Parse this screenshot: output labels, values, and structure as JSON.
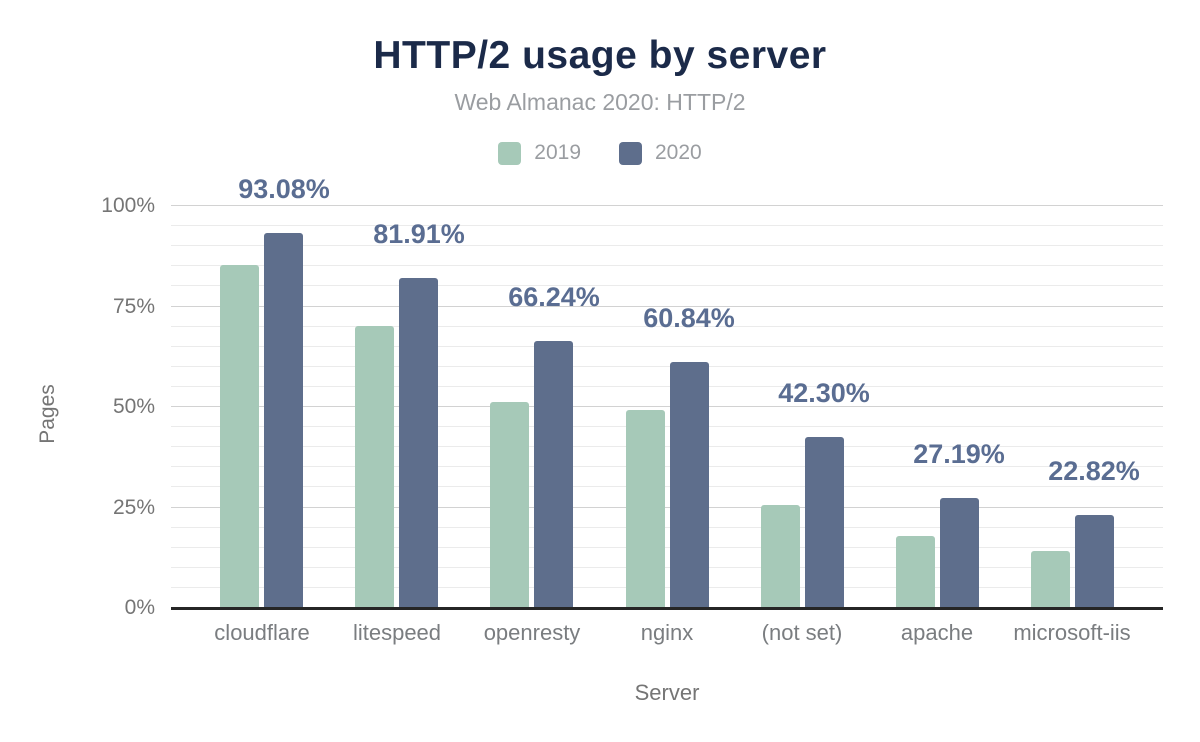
{
  "chart_data": {
    "type": "bar",
    "title": "HTTP/2 usage by server",
    "subtitle": "Web Almanac 2020: HTTP/2",
    "xlabel": "Server",
    "ylabel": "Pages",
    "ylim": [
      0,
      100
    ],
    "y_tick_labels": [
      "0%",
      "25%",
      "50%",
      "75%",
      "100%"
    ],
    "y_tick_values": [
      0,
      25,
      50,
      75,
      100
    ],
    "minor_grid_step": 5,
    "grid": "on",
    "legend_position": "top",
    "categories": [
      "cloudflare",
      "litespeed",
      "openresty",
      "nginx",
      "(not set)",
      "apache",
      "microsoft-iis"
    ],
    "series": [
      {
        "name": "2019",
        "color": "#a6c9b8",
        "values": [
          85.1,
          70.0,
          51.0,
          49.0,
          25.4,
          17.7,
          13.9
        ]
      },
      {
        "name": "2020",
        "color": "#5e6e8c",
        "values": [
          93.08,
          81.91,
          66.24,
          60.84,
          42.3,
          27.19,
          22.82
        ],
        "value_labels": [
          "93.08%",
          "81.91%",
          "66.24%",
          "60.84%",
          "42.30%",
          "27.19%",
          "22.82%"
        ]
      }
    ],
    "value_label_color": "#5a6d92",
    "axis_line_color": "#262626"
  }
}
